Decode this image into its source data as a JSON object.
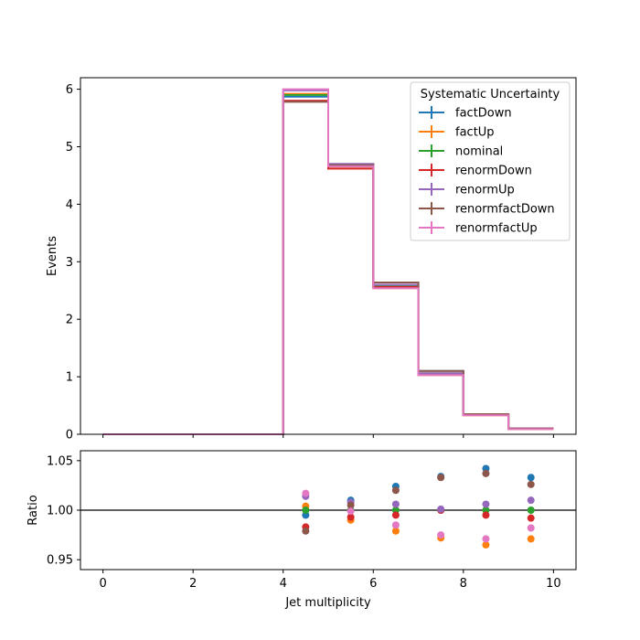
{
  "chart_data": [
    {
      "type": "line",
      "subtype": "step-histogram",
      "ylabel": "Events",
      "xlim": [
        -0.5,
        10.5
      ],
      "ylim": [
        0,
        6.2
      ],
      "bin_edges": [
        0,
        1,
        2,
        3,
        4,
        5,
        6,
        7,
        8,
        9,
        10
      ],
      "xticks": [
        "0",
        "2",
        "4",
        "6",
        "8",
        "10"
      ],
      "yticks": [
        "0",
        "1",
        "2",
        "3",
        "4",
        "5",
        "6"
      ],
      "legend": {
        "title": "Systematic Uncertainty",
        "placement": "top-right"
      },
      "series": [
        {
          "name": "factDown",
          "color": "#1f77b4",
          "values": [
            0,
            0,
            0,
            0,
            5.87,
            4.7,
            2.64,
            1.1,
            0.35,
            0.1
          ]
        },
        {
          "name": "factUp",
          "color": "#ff7f0e",
          "values": [
            0,
            0,
            0,
            0,
            5.92,
            4.62,
            2.54,
            1.03,
            0.33,
            0.09
          ]
        },
        {
          "name": "nominal",
          "color": "#2ca02c",
          "values": [
            0,
            0,
            0,
            0,
            5.9,
            4.66,
            2.58,
            1.06,
            0.34,
            0.1
          ]
        },
        {
          "name": "renormDown",
          "color": "#d62728",
          "values": [
            0,
            0,
            0,
            0,
            5.8,
            4.62,
            2.56,
            1.06,
            0.34,
            0.1
          ]
        },
        {
          "name": "renormUp",
          "color": "#9467bd",
          "values": [
            0,
            0,
            0,
            0,
            5.98,
            4.7,
            2.6,
            1.06,
            0.34,
            0.1
          ]
        },
        {
          "name": "renormfactDown",
          "color": "#8c564b",
          "values": [
            0,
            0,
            0,
            0,
            5.78,
            4.68,
            2.64,
            1.1,
            0.35,
            0.1
          ]
        },
        {
          "name": "renormfactUp",
          "color": "#e377c2",
          "values": [
            0,
            0,
            0,
            0,
            6.0,
            4.66,
            2.54,
            1.03,
            0.33,
            0.09
          ]
        }
      ]
    },
    {
      "type": "scatter",
      "ylabel": "Ratio",
      "xlabel": "Jet multiplicity",
      "xlim": [
        -0.5,
        10.5
      ],
      "ylim": [
        0.94,
        1.06
      ],
      "reference_line": 1.0,
      "xticks": [
        "0",
        "2",
        "4",
        "6",
        "8",
        "10"
      ],
      "yticks": [
        "0.95",
        "1.00",
        "1.05"
      ],
      "x": [
        4.5,
        5.5,
        6.5,
        7.5,
        8.5,
        9.5
      ],
      "series": [
        {
          "name": "factDown",
          "color": "#1f77b4",
          "values": [
            0.995,
            1.01,
            1.024,
            1.034,
            1.042,
            1.033
          ]
        },
        {
          "name": "factUp",
          "color": "#ff7f0e",
          "values": [
            1.004,
            0.99,
            0.979,
            0.972,
            0.965,
            0.971
          ]
        },
        {
          "name": "nominal",
          "color": "#2ca02c",
          "values": [
            1.0,
            1.0,
            1.0,
            1.0,
            1.0,
            1.0
          ]
        },
        {
          "name": "renormDown",
          "color": "#d62728",
          "values": [
            0.983,
            0.993,
            0.995,
            1.0,
            0.995,
            0.992
          ]
        },
        {
          "name": "renormUp",
          "color": "#9467bd",
          "values": [
            1.014,
            1.008,
            1.006,
            1.001,
            1.006,
            1.01
          ]
        },
        {
          "name": "renormfactDown",
          "color": "#8c564b",
          "values": [
            0.979,
            1.005,
            1.02,
            1.033,
            1.037,
            1.026
          ]
        },
        {
          "name": "renormfactUp",
          "color": "#e377c2",
          "values": [
            1.017,
            0.999,
            0.985,
            0.975,
            0.971,
            0.982
          ]
        }
      ]
    }
  ]
}
